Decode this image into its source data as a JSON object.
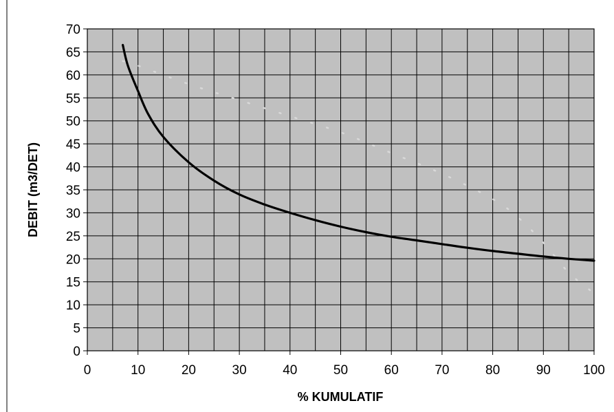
{
  "chart_data": {
    "type": "line",
    "title": "",
    "xlabel": "% KUMULATIF",
    "ylabel": "DEBIT (m3/DET)",
    "xlim": [
      0,
      100
    ],
    "ylim": [
      0,
      70
    ],
    "grid": true,
    "plot_background": "#c0c0c0",
    "x_ticks": [
      0,
      10,
      20,
      30,
      40,
      50,
      60,
      70,
      80,
      90,
      100
    ],
    "y_ticks": [
      0,
      5,
      10,
      15,
      20,
      25,
      30,
      35,
      40,
      45,
      50,
      55,
      60,
      65,
      70
    ],
    "series": [
      {
        "color": "#000000",
        "points": [
          [
            7,
            66.5
          ],
          [
            8,
            62
          ],
          [
            10,
            56.5
          ],
          [
            12,
            51.5
          ],
          [
            15,
            46.5
          ],
          [
            20,
            41
          ],
          [
            25,
            37
          ],
          [
            30,
            34
          ],
          [
            35,
            31.8
          ],
          [
            40,
            30
          ],
          [
            45,
            28.4
          ],
          [
            50,
            27
          ],
          [
            55,
            25.8
          ],
          [
            60,
            24.8
          ],
          [
            65,
            24
          ],
          [
            70,
            23.2
          ],
          [
            75,
            22.4
          ],
          [
            80,
            21.7
          ],
          [
            85,
            21.1
          ],
          [
            90,
            20.5
          ],
          [
            95,
            20
          ],
          [
            100,
            19.6
          ]
        ]
      },
      {
        "color": "#d9d9d9",
        "style": "dotted",
        "points": [
          [
            7,
            63
          ],
          [
            10,
            62
          ],
          [
            20,
            58
          ],
          [
            30,
            54.5
          ],
          [
            40,
            51
          ],
          [
            50,
            47.5
          ],
          [
            60,
            43
          ],
          [
            70,
            38.5
          ],
          [
            80,
            33
          ],
          [
            85,
            29
          ],
          [
            90,
            23.5
          ],
          [
            95,
            17
          ],
          [
            100,
            12.5
          ]
        ]
      }
    ]
  }
}
